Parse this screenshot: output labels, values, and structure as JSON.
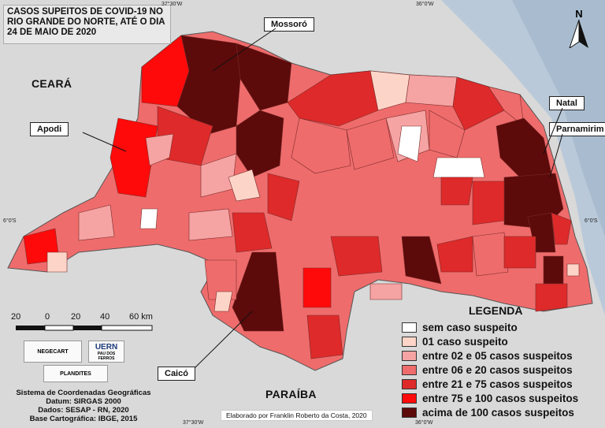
{
  "title": "CASOS SUPEITOS DE COVID-19 NO RIO GRANDE DO NORTE, ATÉ O DIA 24 DE MAIO DE 2020",
  "regions": {
    "ceara": "CEARÁ",
    "paraiba": "PARAÍBA"
  },
  "callouts": {
    "mossoro": "Mossoró",
    "apodi": "Apodi",
    "natal": "Natal",
    "parnamirim": "Parnamirim",
    "caico": "Caicó"
  },
  "coords": {
    "top_left": "37°30'W",
    "top_right": "36°0'W",
    "bottom_left": "37°30'W",
    "bottom_right": "36°0'W",
    "left_lat": "6°0'S",
    "right_lat": "6°0'S"
  },
  "north": "N",
  "scale": {
    "labels": [
      "20",
      "0",
      "20",
      "40",
      "60 km"
    ]
  },
  "legend": {
    "title": "LEGENDA",
    "items": [
      {
        "label": "sem caso suspeito",
        "color": "#ffffff"
      },
      {
        "label": "01 caso suspeito",
        "color": "#fcd5c8"
      },
      {
        "label": "entre 02 e 05 casos suspeitos",
        "color": "#f5a3a3"
      },
      {
        "label": "entre 06 e 20 casos suspeitos",
        "color": "#ef6c6c"
      },
      {
        "label": "entre 21 e 75 casos suspeitos",
        "color": "#de2a2a"
      },
      {
        "label": "entre 75 e 100 casos suspeitos",
        "color": "#ff0a0a"
      },
      {
        "label": "acima de 100 casos suspeitos",
        "color": "#5c0a0a"
      }
    ]
  },
  "logos": {
    "negecart": "NEGECART",
    "uern": "UERN",
    "uern_sub": "PAU DOS FERROS",
    "plandites": "PLANDITES"
  },
  "credits": [
    "Sistema de Coordenadas Geográficas",
    "Datum: SIRGAS 2000",
    "Dados: SESAP - RN, 2020",
    "Base Cartográfica: IBGE, 2015"
  ],
  "elaborado": "Elaborado por Franklin Roberto da Costa, 2020"
}
